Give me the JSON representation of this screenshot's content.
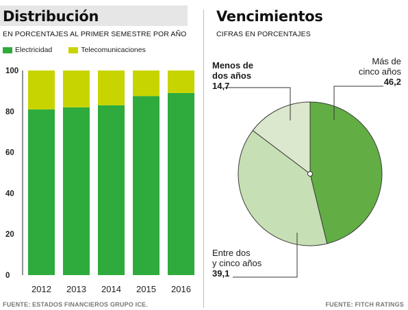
{
  "left": {
    "title": "Distribución",
    "subtitle": "EN PORCENTAJES AL PRIMER SEMESTRE POR AÑO",
    "source": "FUENTE: ESTADOS FINANCIEROS GRUPO ICE."
  },
  "right": {
    "title": "Vencimientos",
    "subtitle": "CIFRAS EN PORCENTAJES",
    "source": "FUENTE: FITCH RATINGS"
  },
  "colors": {
    "electricidad": "#2eab3c",
    "telecomunicaciones": "#c8d400",
    "mas_de_cinco": "#62ae45",
    "entre_dos_y_cinco": "#c7dfb4",
    "menos_de_dos": "#dbe8cd"
  },
  "chart_data": [
    {
      "type": "bar",
      "stacked": true,
      "categories": [
        "2012",
        "2013",
        "2014",
        "2015",
        "2016"
      ],
      "series": [
        {
          "name": "Electricidad",
          "values": [
            81,
            82,
            83,
            87.5,
            89
          ]
        },
        {
          "name": "Telecomunicaciones",
          "values": [
            19,
            18,
            17,
            12.5,
            11
          ]
        }
      ],
      "ylim": [
        0,
        100
      ],
      "yticks": [
        "0",
        "20",
        "40",
        "60",
        "80",
        "100"
      ],
      "legend": "top-left",
      "grid": false
    },
    {
      "type": "pie",
      "slices": [
        {
          "name": "Más de cinco años",
          "line1": "Más de",
          "line2": "cinco años",
          "value": 46.2,
          "label": "46,2"
        },
        {
          "name": "Entre dos y cinco años",
          "line1": "Entre dos",
          "line2": "y cinco años",
          "value": 39.1,
          "label": "39,1"
        },
        {
          "name": "Menos de dos años",
          "line1": "Menos de",
          "line2": "dos años",
          "value": 14.7,
          "label": "14,7"
        }
      ]
    }
  ]
}
